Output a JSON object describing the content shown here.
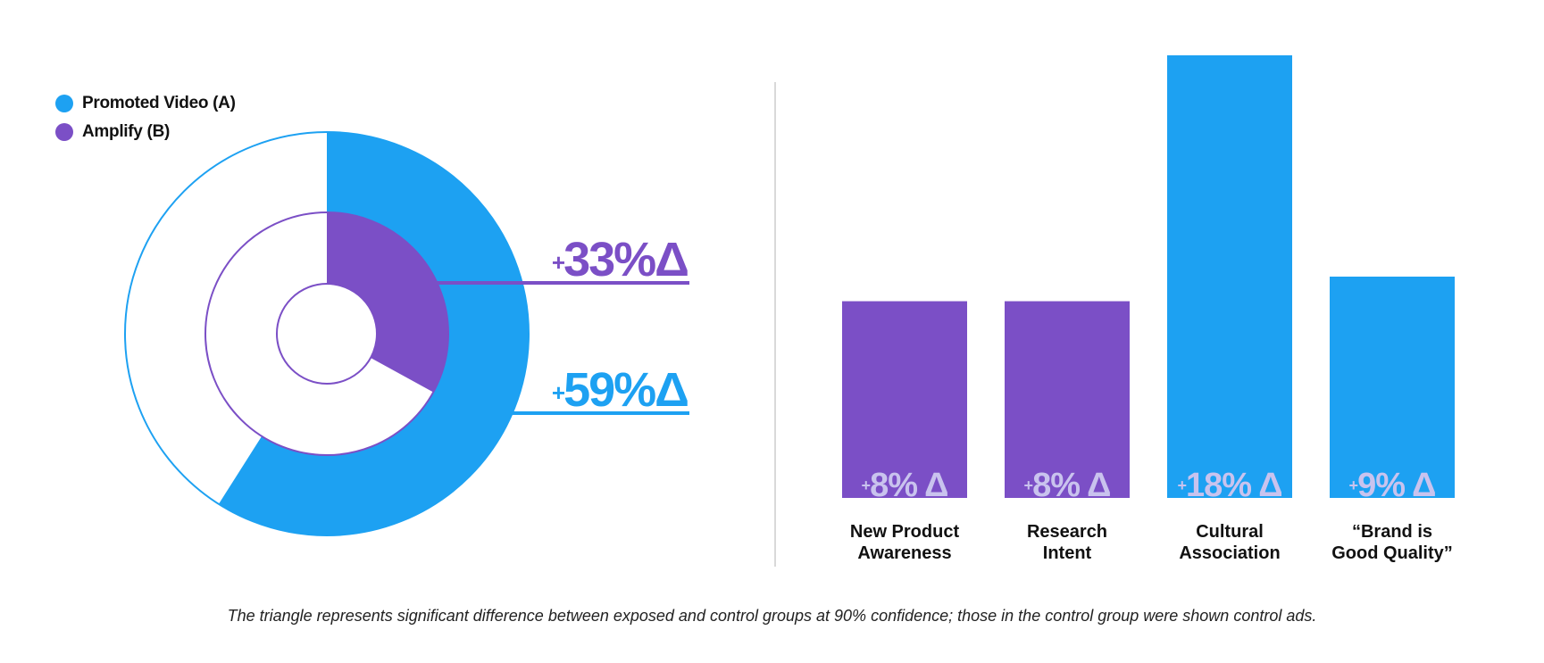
{
  "colors": {
    "promoted_video": "#1da1f2",
    "amplify": "#7b4fc6",
    "label_on_bar": "#c9c3ee",
    "divider": "#d9d9d9",
    "text": "#111111"
  },
  "legend": {
    "items": [
      {
        "label": "Promoted Video (A)",
        "color": "#1da1f2"
      },
      {
        "label": "Amplify (B)",
        "color": "#7b4fc6"
      }
    ]
  },
  "chart_data": [
    {
      "type": "pie",
      "subtype": "nested-donut",
      "series": [
        {
          "name": "Promoted Video (A)",
          "value": 59,
          "label": "59%Δ",
          "label_prefix": "+",
          "color": "#1da1f2"
        },
        {
          "name": "Amplify (B)",
          "value": 33,
          "label": "33%Δ",
          "label_prefix": "+",
          "color": "#7b4fc6"
        }
      ]
    },
    {
      "type": "bar",
      "categories": [
        [
          "New Product",
          "Awareness"
        ],
        [
          "Research",
          "Intent"
        ],
        [
          "Cultural",
          "Association"
        ],
        [
          "“Brand is",
          "Good Quality”"
        ]
      ],
      "values": [
        8,
        8,
        18,
        9
      ],
      "labels": [
        "8% Δ",
        "8% Δ",
        "18% Δ",
        "9% Δ"
      ],
      "label_prefix": "+",
      "series_of_bar": [
        "Amplify (B)",
        "Amplify (B)",
        "Promoted Video (A)",
        "Promoted Video (A)"
      ],
      "colors": [
        "#7b4fc6",
        "#7b4fc6",
        "#1da1f2",
        "#1da1f2"
      ],
      "grid": false
    }
  ],
  "footnote": "The triangle represents significant difference between exposed and control groups at 90% confidence; those in the control group were shown control ads."
}
